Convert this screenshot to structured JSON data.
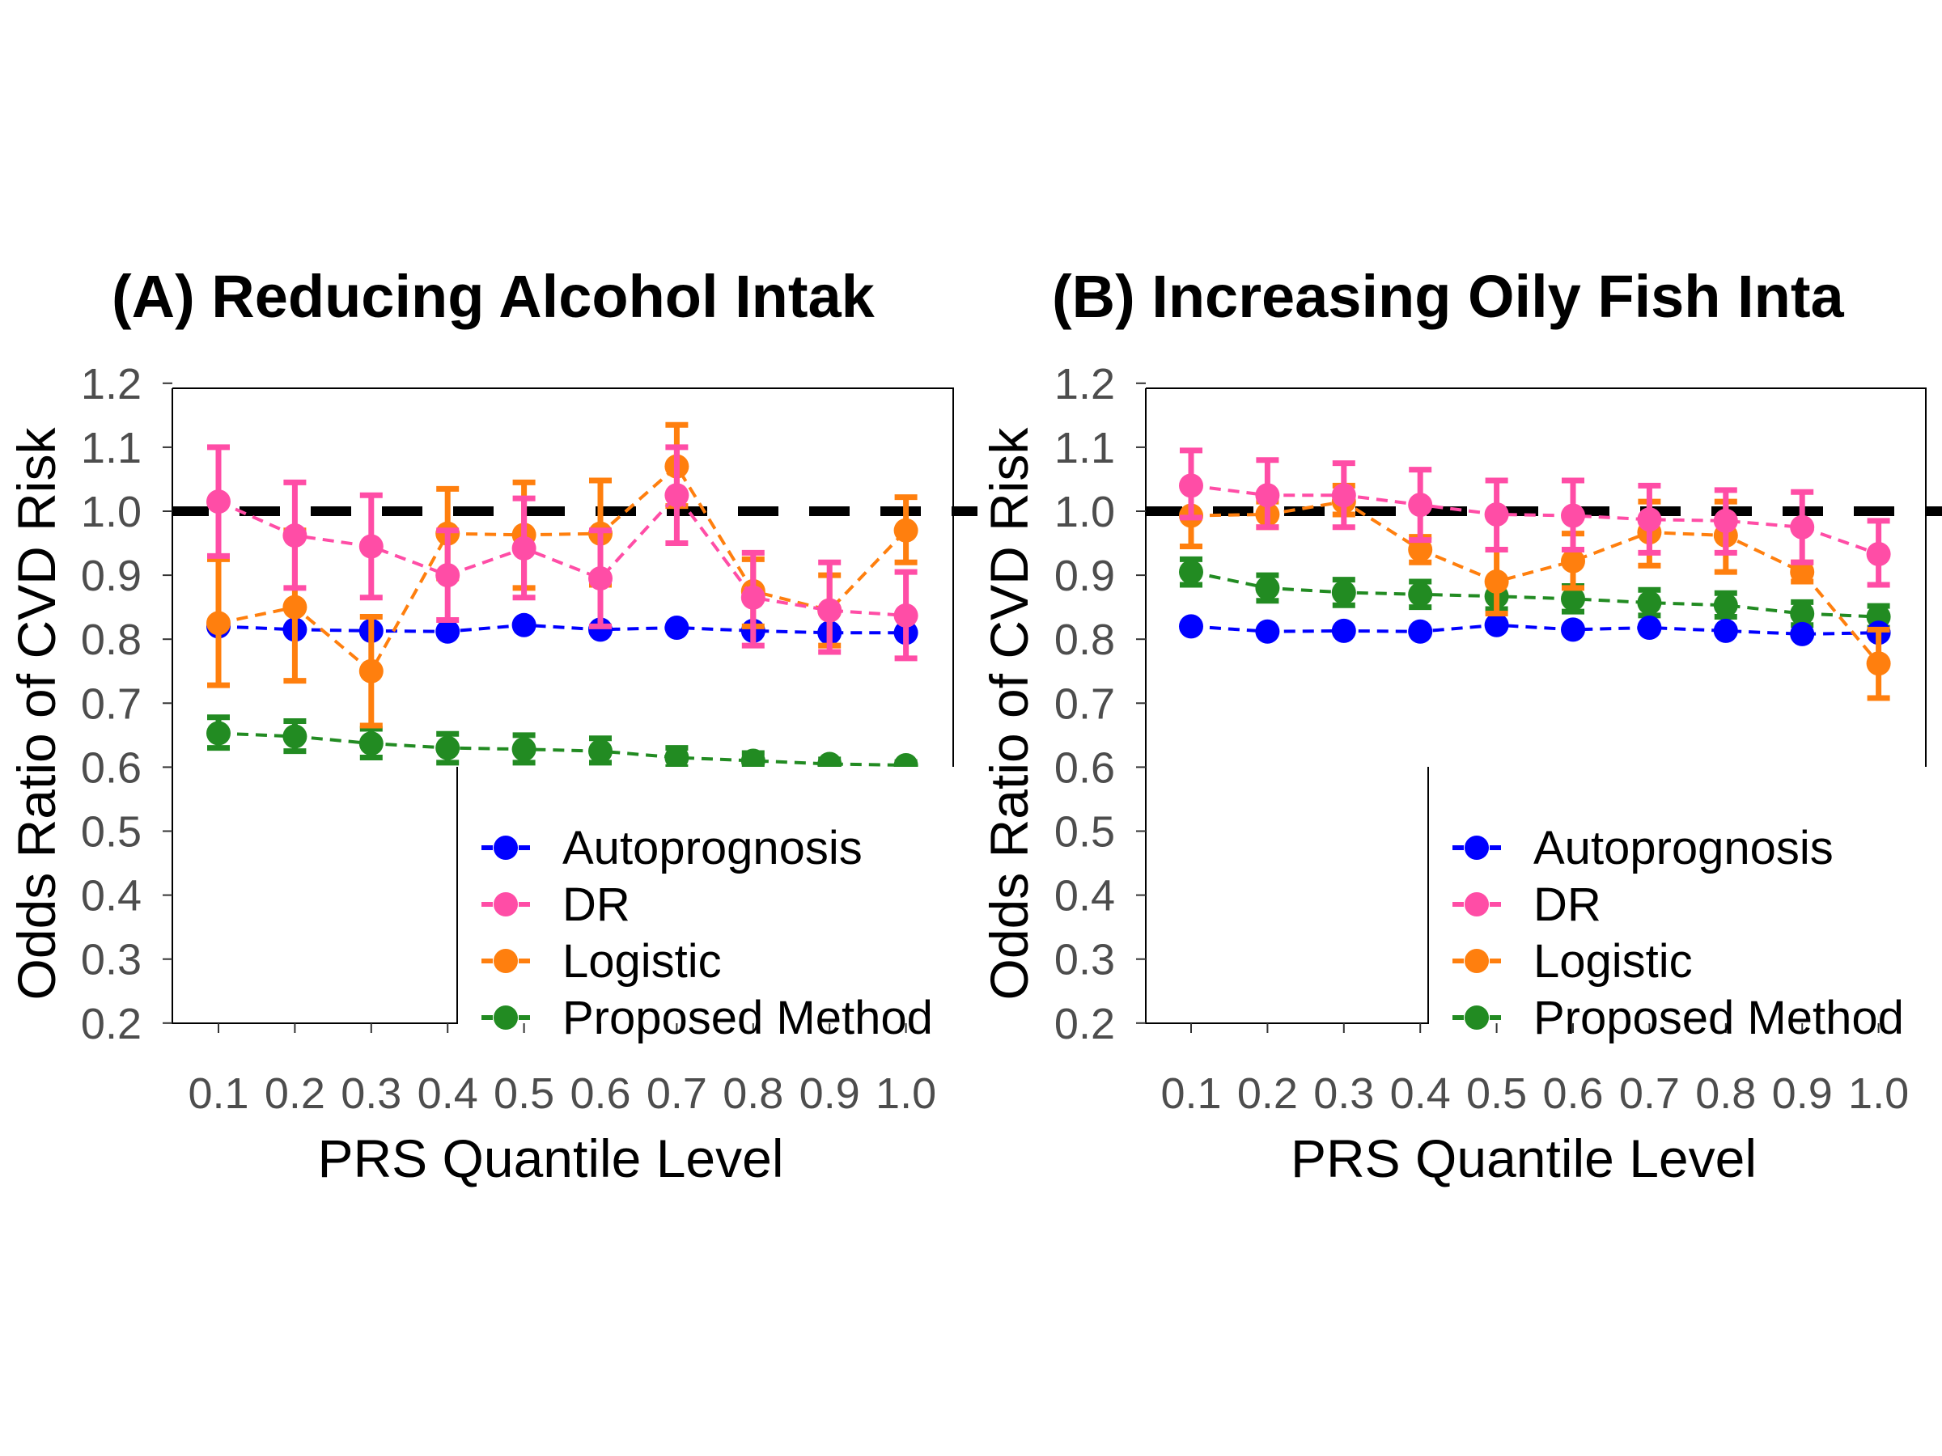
{
  "chart_data": [
    {
      "type": "line",
      "panel_id": "A",
      "title": "(A) Reducing Alcohol Intak",
      "xlabel": "PRS Quantile Level",
      "ylabel": "Odds Ratio of CVD Risk",
      "x": [
        0.1,
        0.2,
        0.3,
        0.4,
        0.5,
        0.6,
        0.7,
        0.8,
        0.9,
        1.0
      ],
      "x_tick_labels": [
        "0.1",
        "0.2",
        "0.3",
        "0.4",
        "0.5",
        "0.6",
        "0.7",
        "0.8",
        "0.9",
        "1.0"
      ],
      "y_tick_labels": [
        "1.2",
        "1.1",
        "1.0",
        "0.9",
        "0.8",
        "0.7",
        "0.6",
        "0.5",
        "0.4",
        "0.3",
        "0.2"
      ],
      "ylim": [
        0.15,
        1.25
      ],
      "reference_line": 1.0,
      "legend_position": "bottom-right",
      "series": [
        {
          "name": "Autoprognosis",
          "color": "#0000ff",
          "values": [
            0.82,
            0.815,
            0.813,
            0.812,
            0.822,
            0.815,
            0.818,
            0.813,
            0.81,
            0.81
          ],
          "lower": null,
          "upper": null
        },
        {
          "name": "DR",
          "color": "#ff4da6",
          "values": [
            1.015,
            0.962,
            0.945,
            0.9,
            0.942,
            0.895,
            1.025,
            0.865,
            0.845,
            0.837
          ],
          "lower": [
            0.93,
            0.88,
            0.865,
            0.83,
            0.865,
            0.82,
            0.95,
            0.79,
            0.78,
            0.77
          ],
          "upper": [
            1.1,
            1.045,
            1.025,
            0.97,
            1.02,
            0.97,
            1.1,
            0.935,
            0.92,
            0.905
          ]
        },
        {
          "name": "Logistic",
          "color": "#ff7f0e",
          "values": [
            0.825,
            0.85,
            0.75,
            0.965,
            0.963,
            0.965,
            1.07,
            0.875,
            0.845,
            0.97
          ],
          "lower": [
            0.728,
            0.735,
            0.665,
            0.895,
            0.88,
            0.885,
            1.008,
            0.82,
            0.79,
            0.92
          ],
          "upper": [
            0.925,
            0.97,
            0.835,
            1.035,
            1.045,
            1.048,
            1.135,
            0.925,
            0.9,
            1.022
          ]
        },
        {
          "name": "Proposed Method",
          "color": "#228b22",
          "values": [
            0.653,
            0.648,
            0.637,
            0.63,
            0.628,
            0.625,
            0.615,
            0.61,
            0.605,
            0.603
          ],
          "lower": [
            0.63,
            0.625,
            0.615,
            0.607,
            0.607,
            0.607,
            0.6,
            0.6,
            0.6,
            0.6
          ],
          "upper": [
            0.678,
            0.672,
            0.66,
            0.652,
            0.65,
            0.645,
            0.63,
            0.622,
            0.612,
            0.608
          ]
        }
      ],
      "legend": [
        "Autoprognosis",
        "DR",
        "Logistic",
        "Proposed Method"
      ]
    },
    {
      "type": "line",
      "panel_id": "B",
      "title": "(B) Increasing Oily Fish Inta",
      "xlabel": "PRS Quantile Level",
      "ylabel": "Odds Ratio of CVD Risk",
      "x": [
        0.1,
        0.2,
        0.3,
        0.4,
        0.5,
        0.6,
        0.7,
        0.8,
        0.9,
        1.0
      ],
      "x_tick_labels": [
        "0.1",
        "0.2",
        "0.3",
        "0.4",
        "0.5",
        "0.6",
        "0.7",
        "0.8",
        "0.9",
        "1.0"
      ],
      "y_tick_labels": [
        "1.2",
        "1.1",
        "1.0",
        "0.9",
        "0.8",
        "0.7",
        "0.6",
        "0.5",
        "0.4",
        "0.3",
        "0.2"
      ],
      "ylim": [
        0.15,
        1.25
      ],
      "reference_line": 1.0,
      "legend_position": "bottom-right",
      "series": [
        {
          "name": "Autoprognosis",
          "color": "#0000ff",
          "values": [
            0.82,
            0.812,
            0.813,
            0.812,
            0.822,
            0.815,
            0.818,
            0.813,
            0.808,
            0.81
          ],
          "lower": null,
          "upper": null
        },
        {
          "name": "DR",
          "color": "#ff4da6",
          "values": [
            1.04,
            1.025,
            1.025,
            1.01,
            0.995,
            0.993,
            0.987,
            0.985,
            0.975,
            0.933
          ],
          "lower": [
            0.99,
            0.975,
            0.975,
            0.955,
            0.94,
            0.94,
            0.935,
            0.935,
            0.92,
            0.885
          ],
          "upper": [
            1.095,
            1.08,
            1.075,
            1.065,
            1.048,
            1.048,
            1.04,
            1.033,
            1.03,
            0.985
          ]
        },
        {
          "name": "Logistic",
          "color": "#ff7f0e",
          "values": [
            0.993,
            0.995,
            1.015,
            0.94,
            0.89,
            0.922,
            0.967,
            0.962,
            0.905,
            0.762
          ],
          "lower": [
            0.945,
            0.975,
            0.995,
            0.92,
            0.84,
            0.88,
            0.915,
            0.905,
            0.89,
            0.708
          ],
          "upper": [
            1.04,
            1.015,
            1.04,
            0.96,
            0.94,
            0.965,
            1.015,
            1.015,
            0.92,
            0.815
          ]
        },
        {
          "name": "Proposed Method",
          "color": "#228b22",
          "values": [
            0.905,
            0.88,
            0.873,
            0.87,
            0.867,
            0.863,
            0.857,
            0.853,
            0.84,
            0.835
          ],
          "lower": [
            0.885,
            0.86,
            0.853,
            0.85,
            0.847,
            0.843,
            0.837,
            0.835,
            0.822,
            0.818
          ],
          "upper": [
            0.925,
            0.9,
            0.893,
            0.89,
            0.887,
            0.883,
            0.877,
            0.872,
            0.858,
            0.852
          ]
        }
      ],
      "legend": [
        "Autoprognosis",
        "DR",
        "Logistic",
        "Proposed Method"
      ]
    }
  ]
}
